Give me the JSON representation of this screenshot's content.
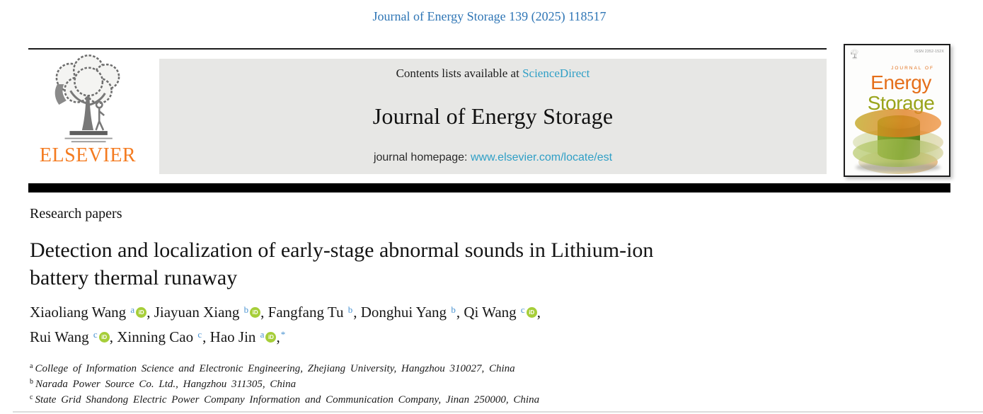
{
  "page": {
    "citation": "Journal of Energy Storage 139 (2025) 118517"
  },
  "masthead": {
    "contents_prefix": "Contents lists available at",
    "sciencedirect_link": "ScienceDirect",
    "journal_title": "Journal of Energy Storage",
    "homepage_prefix": "journal homepage:",
    "homepage_url": "www.elsevier.com/locate/est",
    "publisher_wordmark": "ELSEVIER"
  },
  "cover": {
    "kicker": "JOURNAL OF",
    "title_word1": "Energy",
    "title_word2": "Storage",
    "issn": "ISSN 2352-152X"
  },
  "article": {
    "section_label": "Research papers",
    "title_line1": "Detection and localization of early-stage abnormal sounds in Lithium-ion",
    "title_line2": "battery thermal runaway",
    "authors": [
      {
        "name": "Xiaoliang Wang",
        "sup": "a",
        "orcid": true,
        "sep": ", "
      },
      {
        "name": "Jiayuan Xiang",
        "sup": "b",
        "orcid": true,
        "sep": ", "
      },
      {
        "name": "Fangfang Tu",
        "sup": "b",
        "orcid": false,
        "sep": ", "
      },
      {
        "name": "Donghui Yang",
        "sup": "b",
        "orcid": false,
        "sep": ", "
      },
      {
        "name": "Qi Wang",
        "sup": "c",
        "orcid": true,
        "sep": ",",
        "break_after": true
      },
      {
        "name": "Rui Wang",
        "sup": "c",
        "orcid": true,
        "sep": ", "
      },
      {
        "name": "Xinning Cao",
        "sup": "c",
        "orcid": false,
        "sep": ", "
      },
      {
        "name": "Hao Jin",
        "sup": "a",
        "orcid": true,
        "sep": ",",
        "star": "*"
      }
    ],
    "affiliations": [
      {
        "sup": "a",
        "text": "College of Information Science and Electronic Engineering, Zhejiang University, Hangzhou 310027, China"
      },
      {
        "sup": "b",
        "text": "Narada Power Source Co. Ltd., Hangzhou 311305, China"
      },
      {
        "sup": "c",
        "text": "State Grid Shandong Electric Power Company Information and Communication Company, Jinan 250000, China"
      }
    ]
  },
  "colors": {
    "citation_link": "#2e75b5",
    "light_link": "#2f9fc6",
    "author_superscript": "#4a93d1",
    "elsevier_orange": "#f47b20",
    "orcid_green": "#a6ce39",
    "banner_gray": "#e7e7e5",
    "cover_orange": "#e56f1a",
    "cover_olive": "#99a41b",
    "divider_black": "#000000"
  }
}
